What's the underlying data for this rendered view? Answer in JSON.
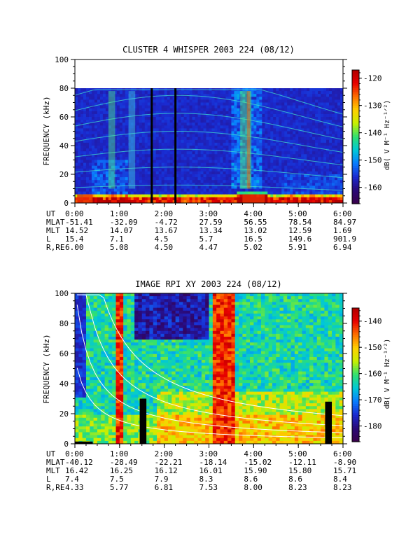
{
  "colorscale": [
    "#3a004a",
    "#2a0a78",
    "#1a2ad0",
    "#0a7cff",
    "#00c8d8",
    "#30e070",
    "#c8f000",
    "#ffd000",
    "#ff7000",
    "#e80000",
    "#b00000"
  ],
  "chart_data": [
    {
      "type": "heatmap",
      "title": "CLUSTER 4 WHISPER 2003 224 (08/12)",
      "ylabel": "FREQUENCY (kHz)",
      "ylim": [
        0,
        100
      ],
      "y_ticks": [
        "0",
        "20",
        "40",
        "60",
        "80",
        "100"
      ],
      "x_ticks": [
        "0:00",
        "1:00",
        "2:00",
        "3:00",
        "4:00",
        "5:00",
        "6:00"
      ],
      "xlim_hours": [
        0,
        6
      ],
      "data_max_khz": 80,
      "colorbar": {
        "label": "dB( V M⁻¹ Hz⁻¹ᐟ²)",
        "ticks": [
          "-120",
          "-130",
          "-140",
          "-150",
          "-160"
        ],
        "range": [
          -166,
          -117
        ]
      },
      "ephemeris": {
        "UT": [
          "0:00",
          "1:00",
          "2:00",
          "3:00",
          "4:00",
          "5:00",
          "6:00"
        ],
        "MLAT": [
          "-51.41",
          "-32.09",
          "-4.72",
          "27.59",
          "56.55",
          "78.54",
          "84.97"
        ],
        "MLT": [
          "14.52",
          "14.07",
          "13.67",
          "13.34",
          "13.02",
          "12.59",
          "1.69"
        ],
        "L": [
          "15.4",
          "7.1",
          "4.5",
          "5.7",
          "16.5",
          "149.6",
          "901.9"
        ],
        "R,RE": [
          "6.00",
          "5.08",
          "4.50",
          "4.47",
          "5.02",
          "5.91",
          "6.94"
        ]
      }
    },
    {
      "type": "heatmap",
      "title": "IMAGE RPI XY 2003 224 (08/12)",
      "ylabel": "FREQUENCY (kHz)",
      "ylim": [
        0,
        100
      ],
      "y_ticks": [
        "0",
        "20",
        "40",
        "60",
        "80",
        "100"
      ],
      "x_ticks": [
        "0:00",
        "1:00",
        "2:00",
        "3:00",
        "4:00",
        "5:00",
        "6:00"
      ],
      "xlim_hours": [
        0,
        6
      ],
      "colorbar": {
        "label": "dB( V M⁻¹ Hz⁻¹ᐟ²)",
        "ticks": [
          "-140",
          "-150",
          "-160",
          "-170",
          "-180"
        ],
        "range": [
          -186,
          -135
        ]
      },
      "ephemeris": {
        "UT": [
          "0:00",
          "1:00",
          "2:00",
          "3:00",
          "4:00",
          "5:00",
          "6:00"
        ],
        "MLAT": [
          "-40.12",
          "-28.49",
          "-22.21",
          "-18.14",
          "-15.02",
          "-12.11",
          "-8.90"
        ],
        "MLT": [
          "16.42",
          "16.25",
          "16.12",
          "16.01",
          "15.90",
          "15.80",
          "15.71"
        ],
        "L": [
          "7.4",
          "7.5",
          "7.9",
          "8.3",
          "8.6",
          "8.6",
          "8.4"
        ],
        "R,RE": [
          "4.33",
          "5.77",
          "6.81",
          "7.53",
          "8.00",
          "8.23",
          "8.23"
        ]
      }
    }
  ]
}
